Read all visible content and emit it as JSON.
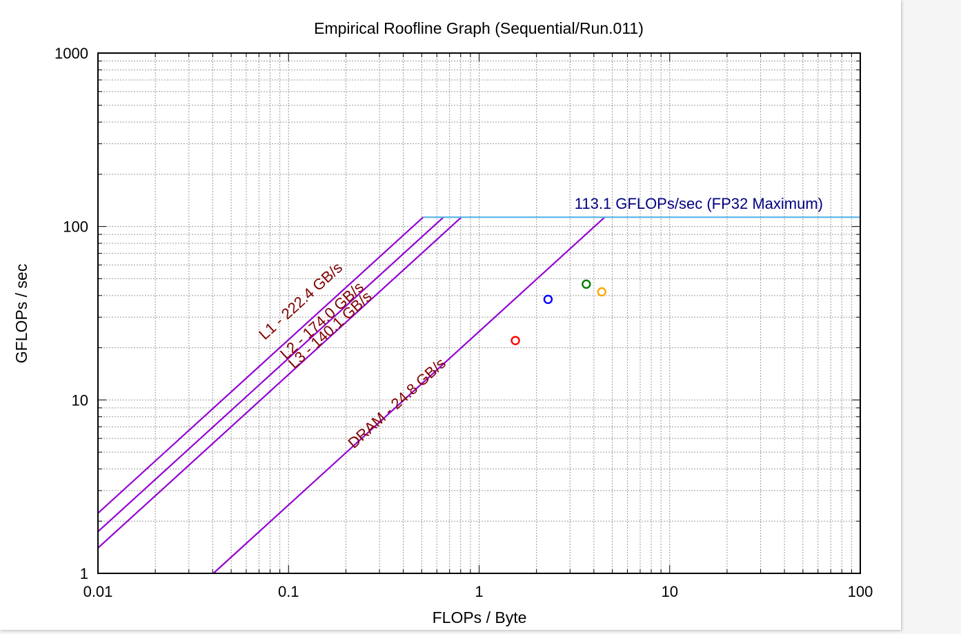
{
  "chart_data": {
    "type": "scatter",
    "title": "Empirical Roofline Graph (Sequential/Run.011)",
    "xlabel": "FLOPs / Byte",
    "ylabel": "GFLOPs / sec",
    "xscale": "log",
    "yscale": "log",
    "xlim": [
      0.01,
      100
    ],
    "ylim": [
      1,
      1000
    ],
    "x_ticks": [
      "0.01",
      "0.1",
      "1",
      "10",
      "100"
    ],
    "y_ticks": [
      "1",
      "10",
      "100",
      "1000"
    ],
    "grid": true,
    "compute_ceiling": {
      "label": "113.1 GFLOPs/sec (FP32 Maximum)",
      "gflops": 113.1,
      "color": "#56b4e9"
    },
    "bandwidth_ceilings": [
      {
        "label": "L1 - 222.4 GB/s",
        "bandwidth": 222.4
      },
      {
        "label": "L2 - 174.0 GB/s",
        "bandwidth": 174.0
      },
      {
        "label": "L3 - 140.1 GB/s",
        "bandwidth": 140.1
      },
      {
        "label": "DRAM - 24.8 GB/s",
        "bandwidth": 24.8
      }
    ],
    "roof_color": "#9400d3",
    "points": [
      {
        "x": 1.55,
        "y": 22.0,
        "color": "#ff0000"
      },
      {
        "x": 2.3,
        "y": 38.0,
        "color": "#0000ff"
      },
      {
        "x": 3.65,
        "y": 46.5,
        "color": "#008000"
      },
      {
        "x": 4.4,
        "y": 42.0,
        "color": "#ffa500"
      }
    ]
  }
}
